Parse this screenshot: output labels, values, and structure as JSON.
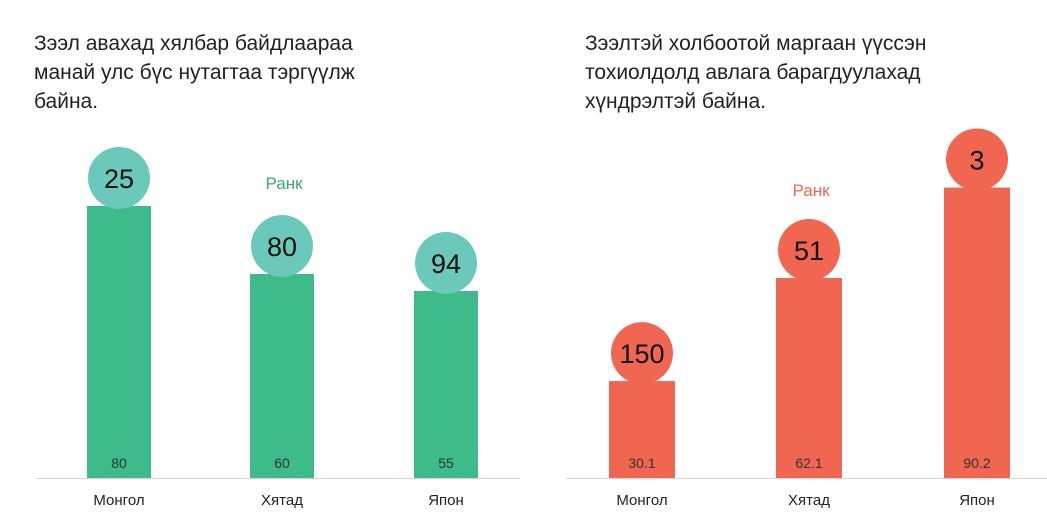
{
  "chart_data": [
    {
      "type": "bar",
      "title": "Зээл авахад хялбар байдлаараа манай улс бүс нутагтаа тэргүүлж байна.",
      "categories": [
        "Монгол",
        "Хятад",
        "Япон"
      ],
      "values": [
        80,
        60,
        55
      ],
      "ylim": [
        0,
        100
      ],
      "annotation_label": "Ранк",
      "ranks": [
        "25",
        "80",
        "94"
      ],
      "bar_color": "#3dbb8a",
      "circle_color": "#6bc9bb",
      "label_color": "#3aa877",
      "grid": false,
      "legend": "none"
    },
    {
      "type": "bar",
      "title": "Зээлтэй холбоотой маргаан үүссэн тохиолдолд авлага барагдуулахад хүндрэлтэй байна.",
      "categories": [
        "Монгол",
        "Хятад",
        "Япон"
      ],
      "values": [
        30.1,
        62.1,
        90.2
      ],
      "ylim": [
        0,
        100
      ],
      "annotation_label": "Ранк",
      "ranks": [
        "150",
        "51",
        "3"
      ],
      "bar_color": "#f06650",
      "circle_color": "#f06650",
      "label_color": "#f06650",
      "grid": false,
      "legend": "none"
    }
  ]
}
